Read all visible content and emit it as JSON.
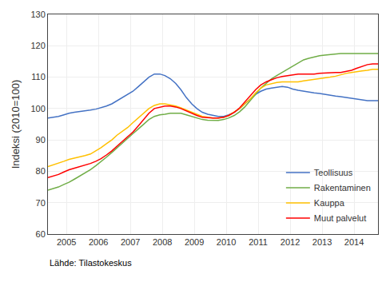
{
  "chart_data": {
    "type": "line",
    "ylabel": "Indeksi (2010=100)",
    "source": "Lähde: Tilastokeskus",
    "xlim": [
      2004.42,
      2014.75
    ],
    "xticks": [
      2005,
      2006,
      2007,
      2008,
      2009,
      2010,
      2011,
      2012,
      2013,
      2014
    ],
    "ylim": [
      60,
      130
    ],
    "yticks": [
      60,
      70,
      80,
      90,
      100,
      110,
      120,
      130
    ],
    "grid": true,
    "legend": "lower right",
    "x": [
      2004.42,
      2004.58,
      2004.75,
      2004.92,
      2005.08,
      2005.25,
      2005.42,
      2005.58,
      2005.75,
      2005.92,
      2006.08,
      2006.25,
      2006.42,
      2006.58,
      2006.75,
      2006.92,
      2007.08,
      2007.25,
      2007.42,
      2007.58,
      2007.75,
      2007.92,
      2008.08,
      2008.25,
      2008.42,
      2008.58,
      2008.75,
      2008.92,
      2009.08,
      2009.25,
      2009.42,
      2009.58,
      2009.75,
      2009.92,
      2010.08,
      2010.25,
      2010.42,
      2010.58,
      2010.75,
      2010.92,
      2011.08,
      2011.25,
      2011.42,
      2011.58,
      2011.75,
      2011.92,
      2012.08,
      2012.25,
      2012.42,
      2012.58,
      2012.75,
      2012.92,
      2013.08,
      2013.25,
      2013.42,
      2013.58,
      2013.75,
      2013.92,
      2014.08,
      2014.25,
      2014.42,
      2014.58,
      2014.75
    ],
    "series": [
      {
        "name": "Teollisuus",
        "color": "#4472C4",
        "values": [
          97.0,
          97.2,
          97.5,
          98.0,
          98.5,
          98.8,
          99.0,
          99.3,
          99.5,
          99.8,
          100.2,
          100.8,
          101.5,
          102.5,
          103.5,
          104.5,
          105.5,
          107.0,
          108.5,
          110.0,
          111.0,
          111.0,
          110.5,
          109.5,
          108.0,
          106.0,
          103.5,
          101.5,
          100.0,
          98.8,
          98.2,
          97.8,
          97.5,
          97.5,
          98.0,
          98.8,
          100.0,
          101.5,
          103.0,
          104.5,
          105.5,
          106.2,
          106.5,
          106.8,
          107.0,
          106.8,
          106.2,
          105.8,
          105.5,
          105.2,
          105.0,
          104.8,
          104.5,
          104.2,
          104.0,
          103.8,
          103.5,
          103.2,
          103.0,
          102.8,
          102.5,
          102.5,
          102.5
        ]
      },
      {
        "name": "Rakentaminen",
        "color": "#70AD47",
        "values": [
          74.0,
          74.5,
          75.0,
          75.8,
          76.5,
          77.5,
          78.5,
          79.5,
          80.5,
          81.8,
          83.0,
          84.5,
          86.0,
          87.5,
          89.0,
          90.5,
          92.0,
          93.5,
          95.0,
          96.5,
          97.5,
          98.0,
          98.2,
          98.5,
          98.5,
          98.5,
          98.0,
          97.5,
          97.0,
          96.5,
          96.3,
          96.2,
          96.2,
          96.5,
          97.0,
          97.8,
          99.0,
          100.5,
          102.5,
          104.5,
          106.5,
          108.0,
          109.5,
          110.5,
          111.5,
          112.5,
          113.5,
          114.5,
          115.5,
          116.0,
          116.5,
          116.8,
          117.0,
          117.2,
          117.3,
          117.5,
          117.5,
          117.5,
          117.5,
          117.5,
          117.5,
          117.5,
          117.5
        ]
      },
      {
        "name": "Kauppa",
        "color": "#FFC000",
        "values": [
          81.5,
          82.0,
          82.5,
          83.2,
          83.8,
          84.2,
          84.5,
          85.0,
          85.5,
          86.5,
          87.5,
          88.8,
          90.0,
          91.5,
          92.8,
          94.0,
          95.5,
          97.0,
          98.5,
          100.0,
          101.0,
          101.5,
          101.5,
          101.2,
          100.8,
          100.2,
          99.5,
          98.8,
          98.0,
          97.5,
          97.2,
          97.0,
          97.0,
          97.2,
          97.8,
          98.8,
          100.0,
          101.5,
          103.0,
          105.0,
          106.5,
          107.5,
          108.0,
          108.3,
          108.5,
          108.5,
          108.5,
          108.5,
          108.8,
          109.0,
          109.3,
          109.5,
          109.8,
          110.0,
          110.3,
          110.8,
          111.2,
          111.5,
          111.8,
          112.0,
          112.2,
          112.5,
          112.5
        ]
      },
      {
        "name": "Muut palvelut",
        "color": "#FF0000",
        "values": [
          78.0,
          78.5,
          79.0,
          79.8,
          80.5,
          81.0,
          81.5,
          82.0,
          82.5,
          83.2,
          84.0,
          85.2,
          86.5,
          88.0,
          89.5,
          91.0,
          92.5,
          94.5,
          96.5,
          98.5,
          100.0,
          100.5,
          100.8,
          100.8,
          100.5,
          100.0,
          99.2,
          98.5,
          97.8,
          97.2,
          97.0,
          97.0,
          97.0,
          97.2,
          97.8,
          98.8,
          100.2,
          102.0,
          104.0,
          106.0,
          107.5,
          108.5,
          109.2,
          109.8,
          110.2,
          110.5,
          110.8,
          111.0,
          111.0,
          111.0,
          111.0,
          111.2,
          111.3,
          111.5,
          111.5,
          111.5,
          111.8,
          112.2,
          112.8,
          113.5,
          114.0,
          114.2,
          114.2
        ]
      }
    ]
  }
}
